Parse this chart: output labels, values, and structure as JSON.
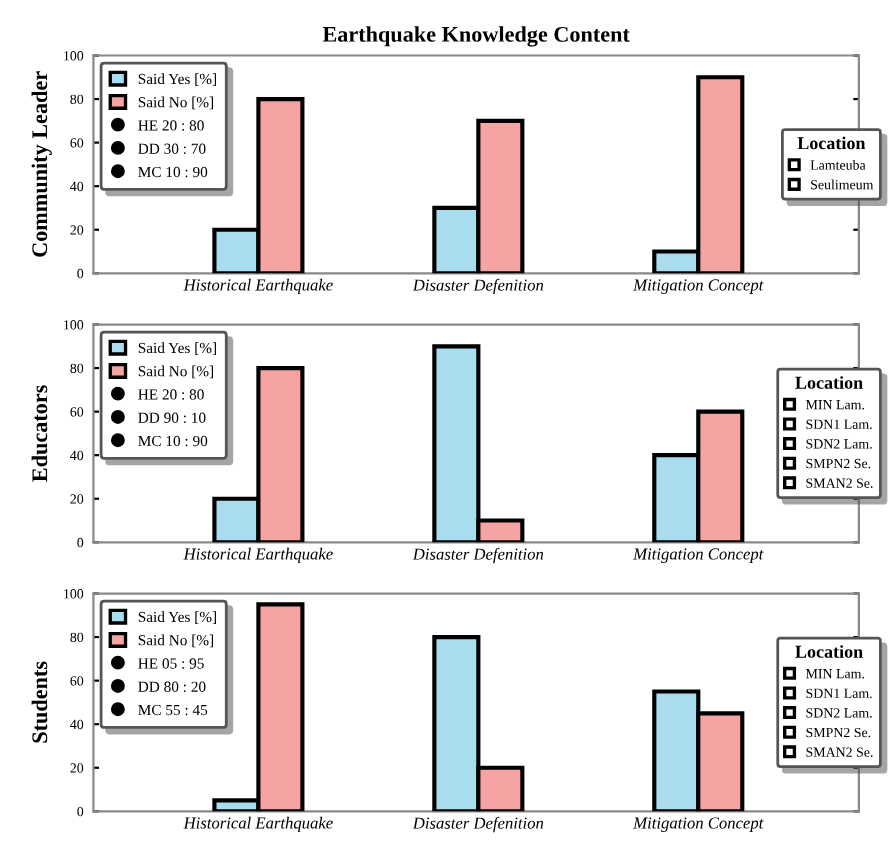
{
  "chart_data": [
    {
      "type": "bar",
      "title": "Earthquake Knowledge Content",
      "ylabel": "Community Leader",
      "categories": [
        "Historical Earthquake",
        "Disaster Defenition",
        "Mitigation Concept"
      ],
      "series": [
        {
          "name": "Said Yes [%]",
          "color": "#a8dcee",
          "values": [
            20,
            30,
            10
          ]
        },
        {
          "name": "Said No [%]",
          "color": "#f5a3a3",
          "values": [
            80,
            70,
            90
          ]
        }
      ],
      "ylim": [
        0,
        100
      ],
      "yticks": [
        0,
        20,
        40,
        60,
        80,
        100
      ],
      "legend": "top left",
      "legend_title": "Location",
      "annotations": [
        "HE 20 : 80",
        "DD 30 : 70",
        "MC 10 : 90",
        "Lamteuba",
        "Seulimeum"
      ]
    },
    {
      "type": "bar",
      "ylabel": "Educators",
      "categories": [
        "Historical Earthquake",
        "Disaster Defenition",
        "Mitigation Concept"
      ],
      "series": [
        {
          "name": "Said Yes [%]",
          "color": "#a8dcee",
          "values": [
            20,
            90,
            40
          ]
        },
        {
          "name": "Said No [%]",
          "color": "#f5a3a3",
          "values": [
            80,
            10,
            60
          ]
        }
      ],
      "ylim": [
        0,
        100
      ],
      "yticks": [
        0,
        20,
        40,
        60,
        80,
        100
      ],
      "legend": "top left",
      "legend_title": "Location",
      "annotations": [
        "HE 20 : 80",
        "DD 90 : 10",
        "MC 10 : 90",
        "MIN Lam.",
        "SDN1 Lam.",
        "SDN2 Lam.",
        "SMPN2 Se.",
        "SMAN2 Se."
      ]
    },
    {
      "type": "bar",
      "ylabel": "Students",
      "categories": [
        "Historical Earthquake",
        "Disaster Defenition",
        "Mitigation Concept"
      ],
      "series": [
        {
          "name": "Said Yes [%]",
          "color": "#a8dcee",
          "values": [
            5,
            80,
            55
          ]
        },
        {
          "name": "Said No [%]",
          "color": "#f5a3a3",
          "values": [
            95,
            20,
            45
          ]
        }
      ],
      "ylim": [
        0,
        100
      ],
      "yticks": [
        0,
        20,
        40,
        60,
        80,
        100
      ],
      "legend": "top left",
      "legend_title": "Location",
      "annotations": [
        "HE 05 : 95",
        "DD 80 : 20",
        "MC 55 : 45",
        "MIN Lam.",
        "SDN1 Lam.",
        "SDN2 Lam.",
        "SMPN2 Se.",
        "SMAN2 Se."
      ]
    }
  ]
}
